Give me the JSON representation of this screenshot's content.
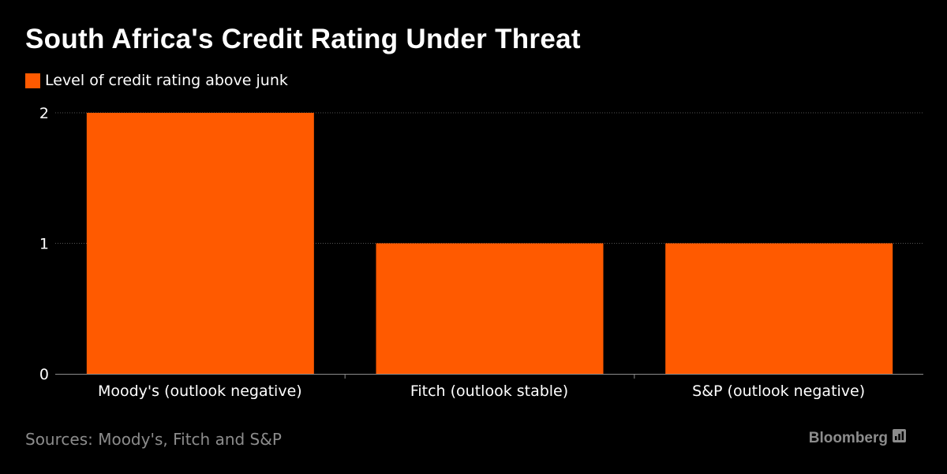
{
  "title": "South Africa's Credit Rating Under Threat",
  "source": "Sources: Moody's, Fitch and S&P",
  "brand": {
    "name": "Bloomberg",
    "icon": "bloomberg-chart-icon"
  },
  "colors": {
    "background": "#000000",
    "bar": "#ff5a00",
    "text": "#ffffff",
    "muted": "#8c8c8c",
    "gridline": "#555555"
  },
  "chart_data": {
    "type": "bar",
    "title": "South Africa's Credit Rating Under Threat",
    "xlabel": "",
    "ylabel": "",
    "categories": [
      "Moody's (outlook negative)",
      "Fitch (outlook stable)",
      "S&P (outlook negative)"
    ],
    "series": [
      {
        "name": "Level of credit rating above junk",
        "values": [
          2,
          1,
          1
        ]
      }
    ],
    "ylim": [
      0,
      2
    ],
    "yticks": [
      0,
      1,
      2
    ],
    "grid": true,
    "legend": "top-left"
  }
}
